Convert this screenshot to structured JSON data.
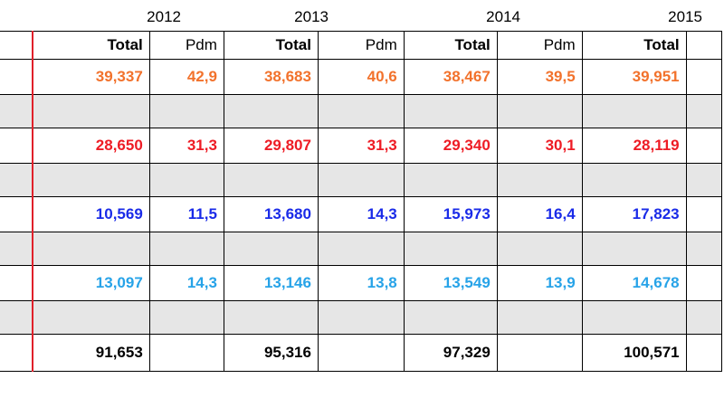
{
  "years": [
    "2012",
    "2013",
    "2014",
    "2015"
  ],
  "header": {
    "total_label": "Total",
    "pdm_label": "Pdm"
  },
  "colors": {
    "orange": "#f2722c",
    "red": "#ee1c25",
    "blue": "#1a2be8",
    "cyan": "#27a3e8"
  },
  "rows": [
    {
      "color": "orange",
      "values": [
        "39,337",
        "42,9",
        "38,683",
        "40,6",
        "38,467",
        "39,5",
        "39,951"
      ]
    },
    {
      "color": "red",
      "values": [
        "28,650",
        "31,3",
        "29,807",
        "31,3",
        "29,340",
        "30,1",
        "28,119"
      ]
    },
    {
      "color": "blue",
      "values": [
        "10,569",
        "11,5",
        "13,680",
        "14,3",
        "15,973",
        "16,4",
        "17,823"
      ]
    },
    {
      "color": "cyan",
      "values": [
        "13,097",
        "14,3",
        "13,146",
        "13,8",
        "13,549",
        "13,9",
        "14,678"
      ]
    }
  ],
  "totals": [
    "91,653",
    "95,316",
    "97,329",
    "100,571"
  ]
}
